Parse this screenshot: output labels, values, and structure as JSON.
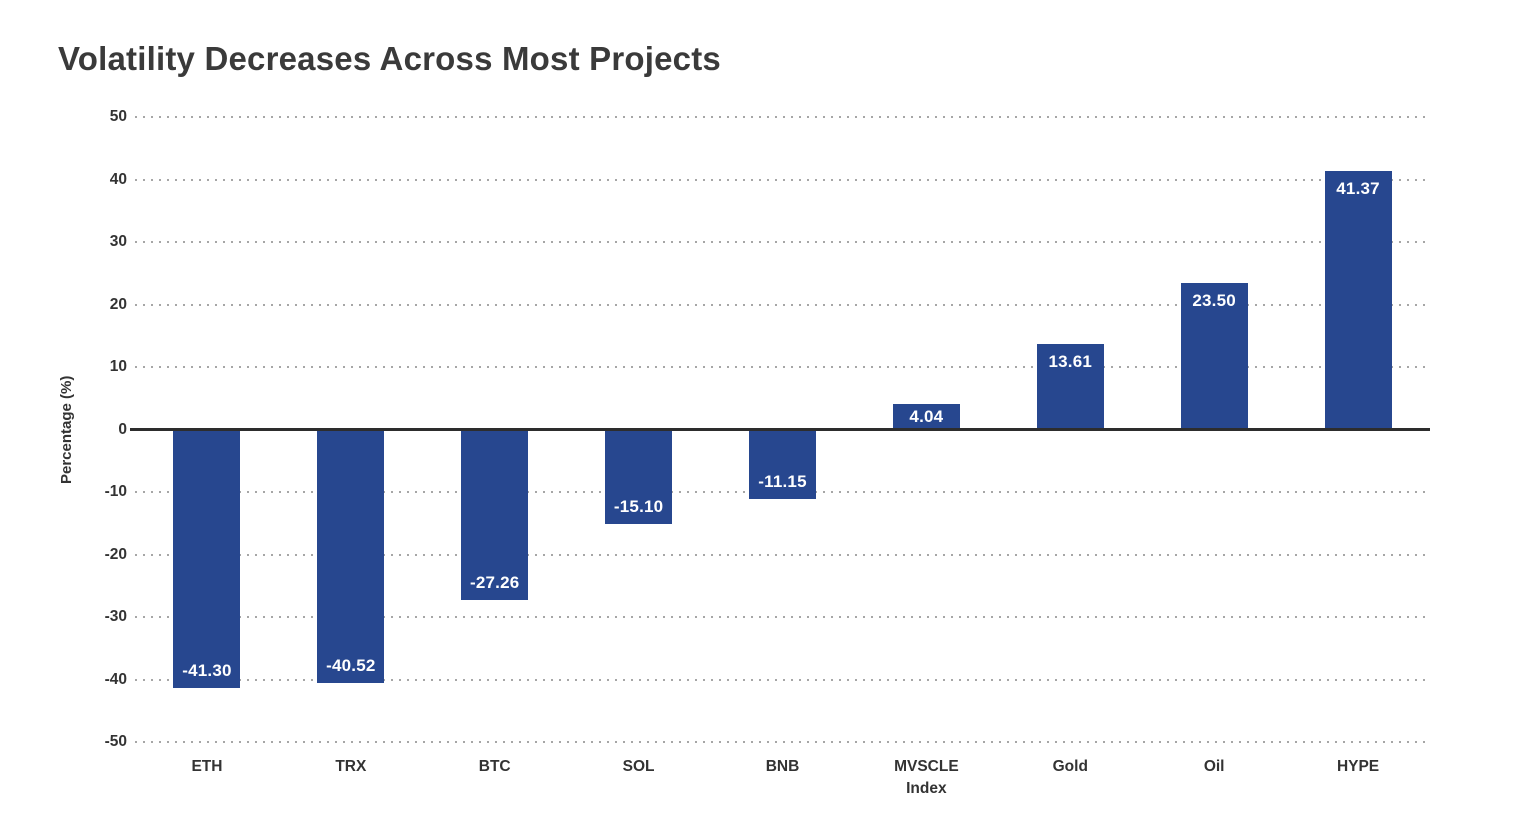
{
  "chart_data": {
    "type": "bar",
    "title": "Volatility Decreases Across Most Projects",
    "xlabel": "",
    "ylabel": "Percentage (%)",
    "categories": [
      "ETH",
      "TRX",
      "BTC",
      "SOL",
      "BNB",
      "MVSCLE\nIndex",
      "Gold",
      "Oil",
      "HYPE"
    ],
    "values": [
      -41.3,
      -40.52,
      -27.26,
      -15.1,
      -11.15,
      4.04,
      13.61,
      23.5,
      41.37
    ],
    "value_labels": [
      "-41.30",
      "-40.52",
      "-27.26",
      "-15.10",
      "-11.15",
      "4.04",
      "13.61",
      "23.50",
      "41.37"
    ],
    "ylim": [
      -50,
      50
    ],
    "yticks": [
      50,
      40,
      30,
      20,
      10,
      0,
      -10,
      -20,
      -30,
      -40,
      -50
    ],
    "legend_position": "none",
    "grid": "horizontal-dotted",
    "colors": {
      "bar": "#27478f",
      "title": "#3a3a3a",
      "tick_label": "#333333",
      "grid_line": "#a6a6a6",
      "zero_line": "#2d2d2d",
      "value_label": "#ffffff",
      "background": "#ffffff"
    }
  }
}
